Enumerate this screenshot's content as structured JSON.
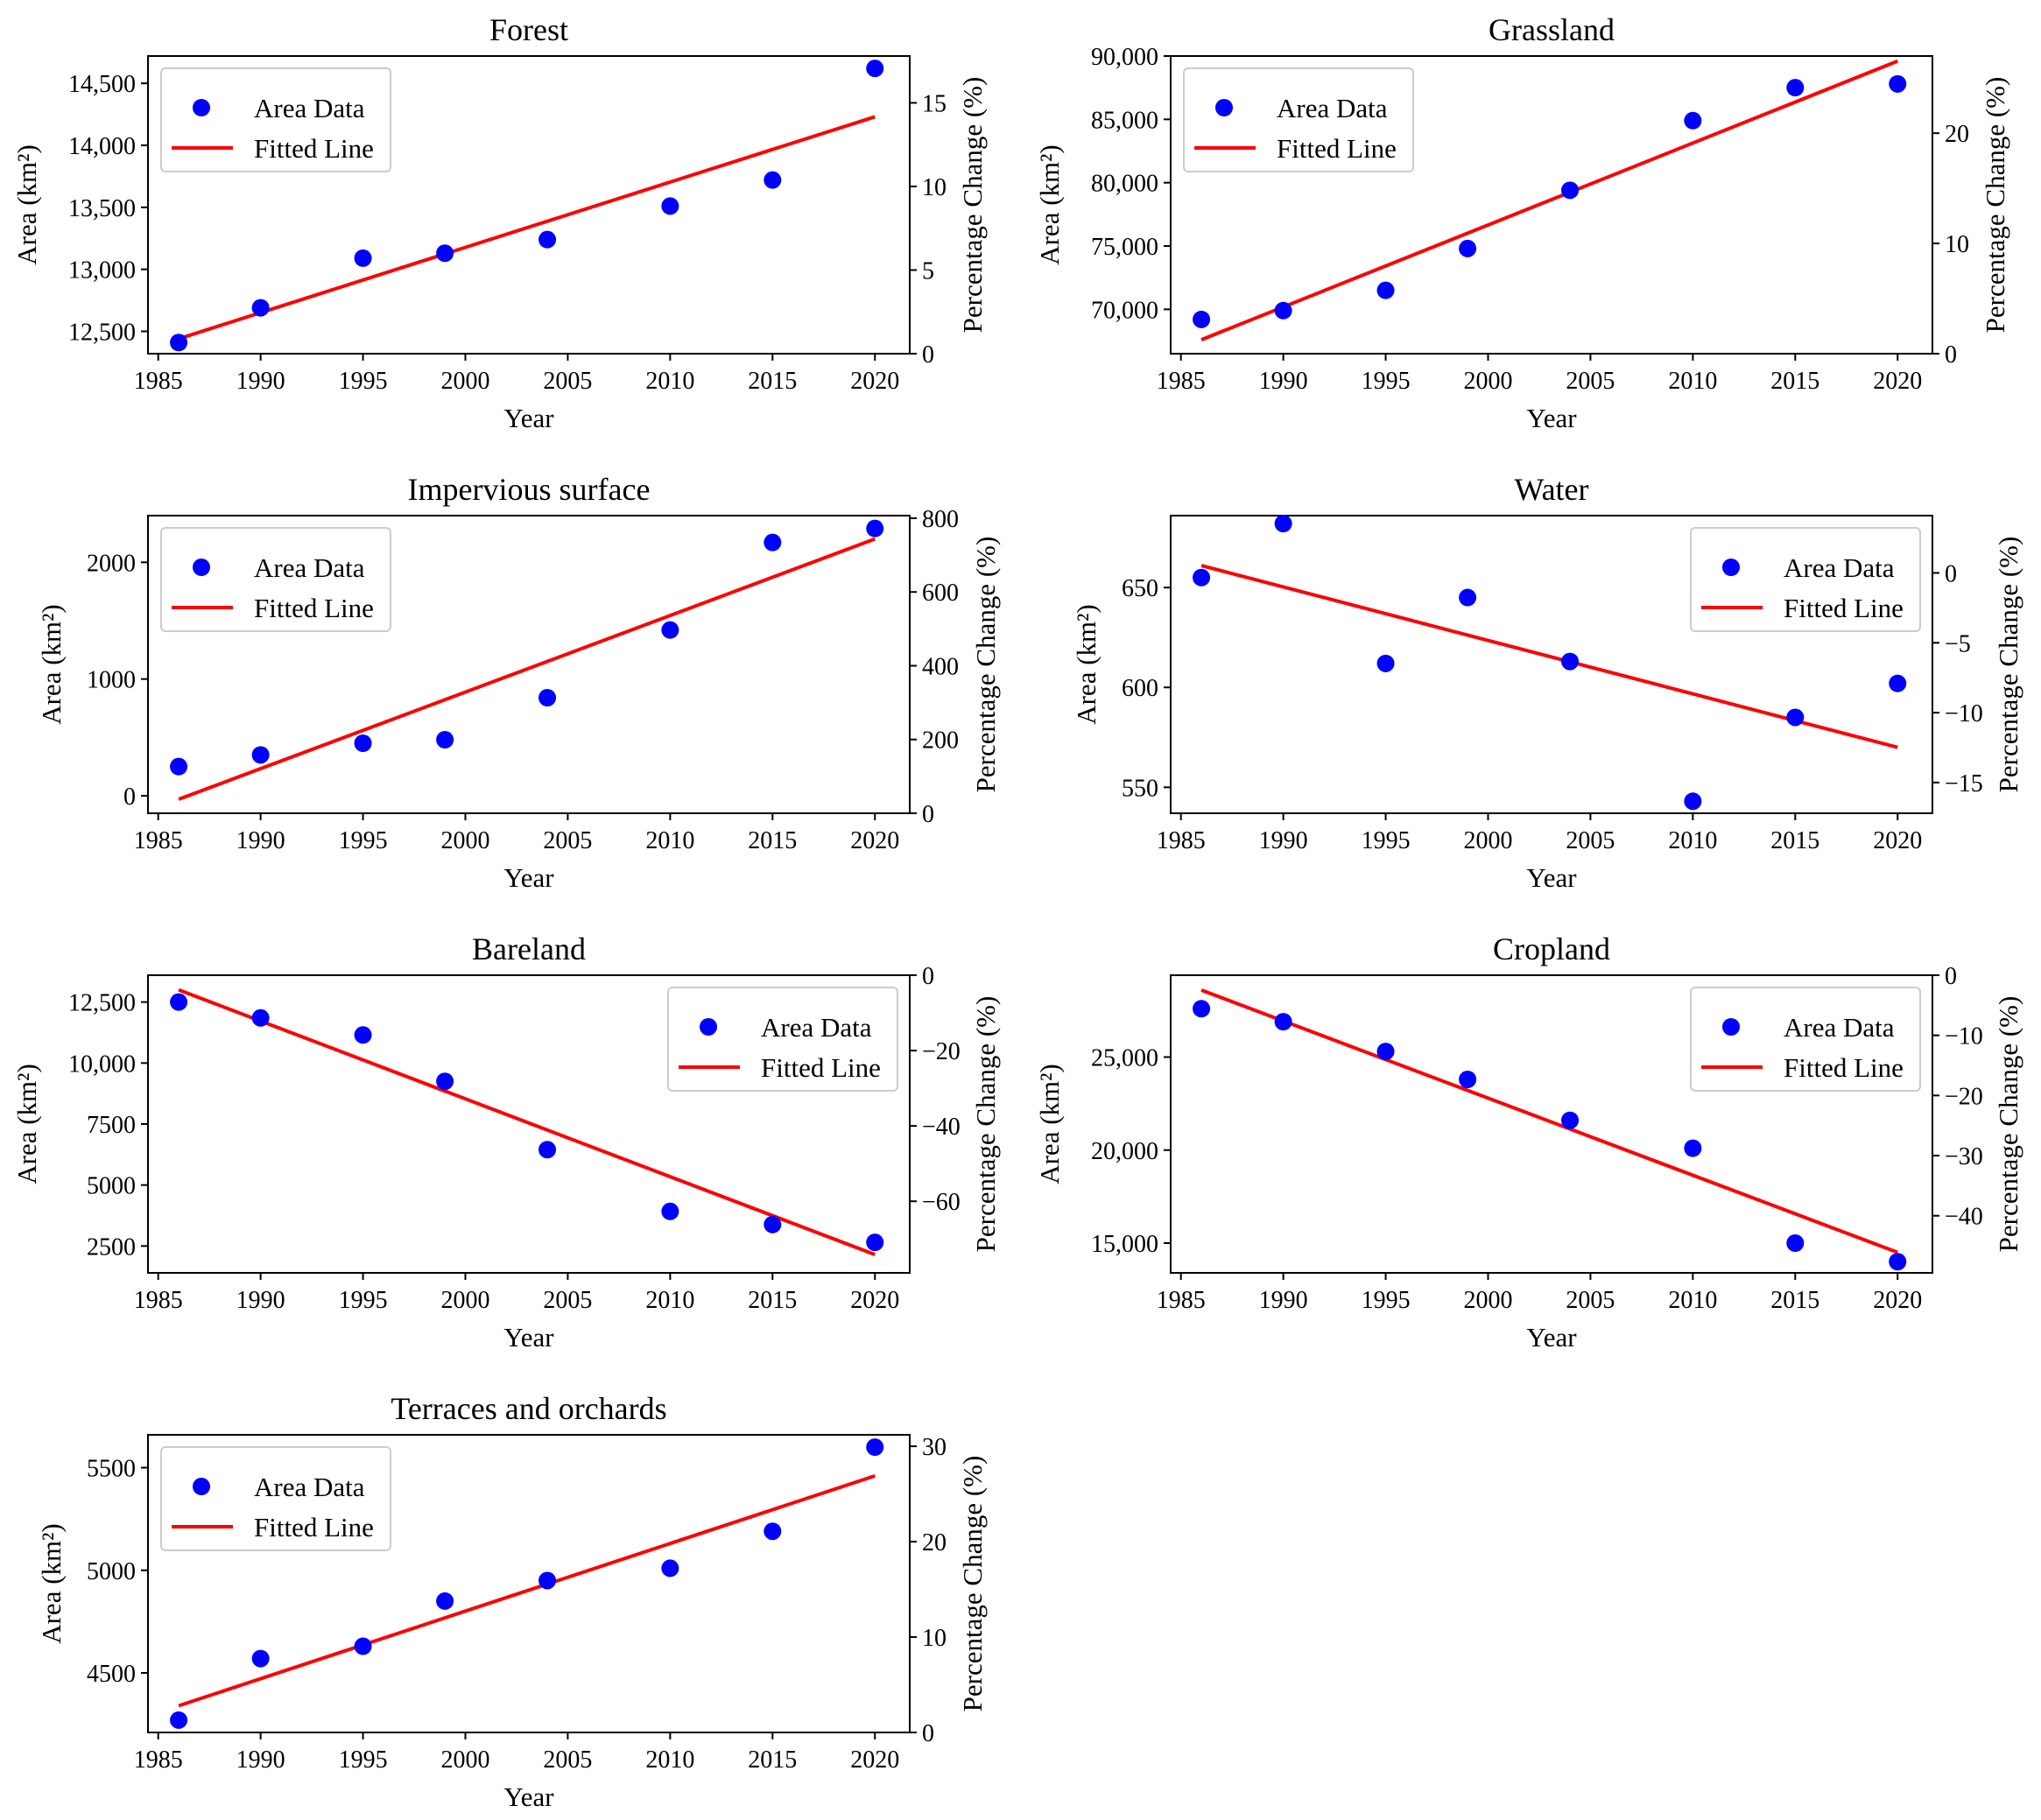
{
  "figure": {
    "xlabel": "Year",
    "ylabel_left": "Area (km²)",
    "ylabel_right": "Percentage Change (%)",
    "legend_points": "Area Data",
    "legend_line": "Fitted Line",
    "colors": {
      "points": "#0000ff",
      "line": "#ff0000",
      "axes": "#000000",
      "legend_border": "#cccccc"
    }
  },
  "chart_data": [
    {
      "type": "scatter",
      "title": "Forest",
      "x": [
        1986,
        1990,
        1995,
        1999,
        2004,
        2010,
        2015,
        2020
      ],
      "y": [
        12410,
        12690,
        13090,
        13130,
        13240,
        13510,
        13720,
        14620
      ],
      "fit": {
        "x": [
          1986,
          2020
        ],
        "y": [
          12440,
          14230
        ]
      },
      "xlim": [
        1984.5,
        2021.7
      ],
      "ylim": [
        12320,
        14720
      ],
      "yticks": [
        12500,
        13000,
        13500,
        14000,
        14500
      ],
      "ytick_labels": [
        "12,500",
        "13,000",
        "13,500",
        "14,000",
        "14,500"
      ],
      "y2lim": [
        0,
        17.8
      ],
      "y2ticks": [
        0,
        5,
        10,
        15
      ],
      "y2tick_labels": [
        "0",
        "5",
        "10",
        "15"
      ],
      "xticks": [
        1985,
        1990,
        1995,
        2000,
        2005,
        2010,
        2015,
        2020
      ],
      "xtick_labels": [
        "1985",
        "1990",
        "1995",
        "2000",
        "2005",
        "2010",
        "2015",
        "2020"
      ],
      "legend": "upper-left"
    },
    {
      "type": "scatter",
      "title": "Grassland",
      "x": [
        1986,
        1990,
        1995,
        1999,
        2004,
        2010,
        2015,
        2020
      ],
      "y": [
        69200,
        69900,
        71500,
        74800,
        79400,
        84900,
        87500,
        87800
      ],
      "fit": {
        "x": [
          1986,
          2020
        ],
        "y": [
          67600,
          89600
        ]
      },
      "xlim": [
        1984.5,
        2021.7
      ],
      "ylim": [
        66500,
        90000
      ],
      "yticks": [
        70000,
        75000,
        80000,
        85000,
        90000
      ],
      "ytick_labels": [
        "70,000",
        "75,000",
        "80,000",
        "85,000",
        "90,000"
      ],
      "y2lim": [
        0,
        27
      ],
      "y2ticks": [
        0,
        10,
        20
      ],
      "y2tick_labels": [
        "0",
        "10",
        "20"
      ],
      "xticks": [
        1985,
        1990,
        1995,
        2000,
        2005,
        2010,
        2015,
        2020
      ],
      "xtick_labels": [
        "1985",
        "1990",
        "1995",
        "2000",
        "2005",
        "2010",
        "2015",
        "2020"
      ],
      "legend": "upper-left"
    },
    {
      "type": "scatter",
      "title": "Impervious surface",
      "x": [
        1986,
        1990,
        1995,
        1999,
        2004,
        2010,
        2015,
        2020
      ],
      "y": [
        250,
        350,
        450,
        480,
        840,
        1420,
        2170,
        2290
      ],
      "fit": {
        "x": [
          1986,
          2020
        ],
        "y": [
          -30,
          2200
        ]
      },
      "xlim": [
        1984.5,
        2021.7
      ],
      "ylim": [
        -150,
        2400
      ],
      "yticks": [
        0,
        1000,
        2000
      ],
      "ytick_labels": [
        "0",
        "1000",
        "2000"
      ],
      "y2lim": [
        0,
        807
      ],
      "y2ticks": [
        0,
        200,
        400,
        600,
        800
      ],
      "y2tick_labels": [
        "0",
        "200",
        "400",
        "600",
        "800"
      ],
      "xticks": [
        1985,
        1990,
        1995,
        2000,
        2005,
        2010,
        2015,
        2020
      ],
      "xtick_labels": [
        "1985",
        "1990",
        "1995",
        "2000",
        "2005",
        "2010",
        "2015",
        "2020"
      ],
      "legend": "upper-left"
    },
    {
      "type": "scatter",
      "title": "Water",
      "x": [
        1986,
        1990,
        1995,
        1999,
        2004,
        2010,
        2015,
        2020
      ],
      "y": [
        655,
        682,
        612,
        645,
        613,
        543,
        585,
        602
      ],
      "fit": {
        "x": [
          1986,
          2020
        ],
        "y": [
          661,
          570
        ]
      },
      "xlim": [
        1984.5,
        2021.7
      ],
      "ylim": [
        537,
        686
      ],
      "yticks": [
        550,
        600,
        650
      ],
      "ytick_labels": [
        "550",
        "600",
        "650"
      ],
      "y2lim": [
        -17.2,
        4.1
      ],
      "y2ticks": [
        -15,
        -10,
        -5,
        0
      ],
      "y2tick_labels": [
        "−15",
        "−10",
        "−5",
        "0"
      ],
      "xticks": [
        1985,
        1990,
        1995,
        2000,
        2005,
        2010,
        2015,
        2020
      ],
      "xtick_labels": [
        "1985",
        "1990",
        "1995",
        "2000",
        "2005",
        "2010",
        "2015",
        "2020"
      ],
      "legend": "upper-right"
    },
    {
      "type": "scatter",
      "title": "Bareland",
      "x": [
        1986,
        1990,
        1995,
        1999,
        2004,
        2010,
        2015,
        2020
      ],
      "y": [
        12500,
        11850,
        11150,
        9250,
        6450,
        3920,
        3380,
        2650
      ],
      "fit": {
        "x": [
          1986,
          2020
        ],
        "y": [
          13000,
          2150
        ]
      },
      "xlim": [
        1984.5,
        2021.7
      ],
      "ylim": [
        1400,
        13600
      ],
      "yticks": [
        2500,
        5000,
        7500,
        10000,
        12500
      ],
      "ytick_labels": [
        "2500",
        "5000",
        "7500",
        "10,000",
        "12,500"
      ],
      "y2lim": [
        -79,
        0
      ],
      "y2ticks": [
        -60,
        -40,
        -20,
        0
      ],
      "y2tick_labels": [
        "−60",
        "−40",
        "−20",
        "0"
      ],
      "xticks": [
        1985,
        1990,
        1995,
        2000,
        2005,
        2010,
        2015,
        2020
      ],
      "xtick_labels": [
        "1985",
        "1990",
        "1995",
        "2000",
        "2005",
        "2010",
        "2015",
        "2020"
      ],
      "legend": "upper-right"
    },
    {
      "type": "scatter",
      "title": "Cropland",
      "x": [
        1986,
        1990,
        1995,
        1999,
        2004,
        2010,
        2015,
        2020
      ],
      "y": [
        27600,
        26900,
        25300,
        23800,
        21600,
        20100,
        15000,
        14000
      ],
      "fit": {
        "x": [
          1986,
          2020
        ],
        "y": [
          28600,
          14500
        ]
      },
      "xlim": [
        1984.5,
        2021.7
      ],
      "ylim": [
        13400,
        29400
      ],
      "yticks": [
        15000,
        20000,
        25000
      ],
      "ytick_labels": [
        "15,000",
        "20,000",
        "25,000"
      ],
      "y2lim": [
        -49.5,
        0
      ],
      "y2ticks": [
        -40,
        -30,
        -20,
        -10,
        0
      ],
      "y2tick_labels": [
        "−40",
        "−30",
        "−20",
        "−10",
        "0"
      ],
      "xticks": [
        1985,
        1990,
        1995,
        2000,
        2005,
        2010,
        2015,
        2020
      ],
      "xtick_labels": [
        "1985",
        "1990",
        "1995",
        "2000",
        "2005",
        "2010",
        "2015",
        "2020"
      ],
      "legend": "upper-right"
    },
    {
      "type": "scatter",
      "title": "Terraces and orchards",
      "x": [
        1986,
        1990,
        1995,
        1999,
        2004,
        2010,
        2015,
        2020
      ],
      "y": [
        4270,
        4570,
        4630,
        4850,
        4950,
        5010,
        5190,
        5600
      ],
      "fit": {
        "x": [
          1986,
          2020
        ],
        "y": [
          4340,
          5460
        ]
      },
      "xlim": [
        1984.5,
        2021.7
      ],
      "ylim": [
        4210,
        5660
      ],
      "yticks": [
        4500,
        5000,
        5500
      ],
      "ytick_labels": [
        "4500",
        "5000",
        "5500"
      ],
      "y2lim": [
        0,
        31.2
      ],
      "y2ticks": [
        0,
        10,
        20,
        30
      ],
      "y2tick_labels": [
        "0",
        "10",
        "20",
        "30"
      ],
      "xticks": [
        1985,
        1990,
        1995,
        2000,
        2005,
        2010,
        2015,
        2020
      ],
      "xtick_labels": [
        "1985",
        "1990",
        "1995",
        "2000",
        "2005",
        "2010",
        "2015",
        "2020"
      ],
      "legend": "upper-left"
    }
  ]
}
